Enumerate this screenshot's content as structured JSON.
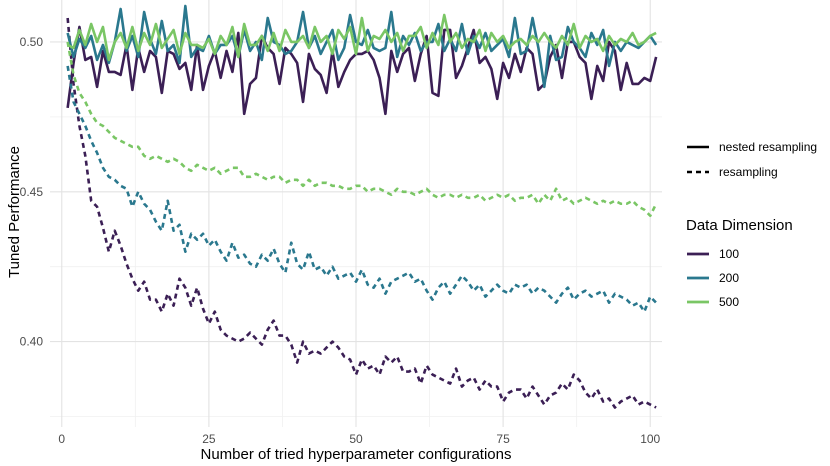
{
  "chart_data": {
    "type": "line",
    "title": "",
    "xlabel": "Number of tried hyperparameter configurations",
    "ylabel": "Tuned Performance",
    "xlim": [
      -2,
      102
    ],
    "ylim": [
      0.3715,
      0.514
    ],
    "x_ticks": [
      {
        "value": 0,
        "label": "0"
      },
      {
        "value": 25,
        "label": "25"
      },
      {
        "value": 50,
        "label": "50"
      },
      {
        "value": 75,
        "label": "75"
      },
      {
        "value": 100,
        "label": "100"
      }
    ],
    "y_ticks": [
      {
        "value": 0.4,
        "label": "0.40"
      },
      {
        "value": 0.45,
        "label": "0.45"
      },
      {
        "value": 0.5,
        "label": "0.50"
      }
    ],
    "grid": true,
    "colors": {
      "100": "#3b1f55",
      "200": "#2a788e",
      "500": "#7ac665"
    },
    "legend_linetype": {
      "items": [
        {
          "label": "nested resampling",
          "dash": "solid"
        },
        {
          "label": "resampling",
          "dash": "dashed"
        }
      ]
    },
    "legend_color": {
      "title": "Data Dimension",
      "items": [
        {
          "label": "100",
          "color": "#3b1f55"
        },
        {
          "label": "200",
          "color": "#2a788e"
        },
        {
          "label": "500",
          "color": "#7ac665"
        }
      ]
    },
    "series": [
      {
        "name": "100 - nested resampling",
        "dimension": "100",
        "dash": "solid",
        "color": "#3b1f55",
        "values": [
          0.478,
          0.493,
          0.505,
          0.494,
          0.495,
          0.485,
          0.497,
          0.49,
          0.49,
          0.489,
          0.499,
          0.484,
          0.498,
          0.49,
          0.497,
          0.495,
          0.483,
          0.497,
          0.496,
          0.491,
          0.493,
          0.484,
          0.499,
          0.484,
          0.492,
          0.497,
          0.488,
          0.497,
          0.49,
          0.503,
          0.476,
          0.486,
          0.488,
          0.502,
          0.498,
          0.496,
          0.486,
          0.498,
          0.496,
          0.493,
          0.48,
          0.496,
          0.491,
          0.489,
          0.483,
          0.497,
          0.485,
          0.49,
          0.494,
          0.496,
          0.496,
          0.497,
          0.494,
          0.488,
          0.476,
          0.497,
          0.49,
          0.496,
          0.498,
          0.487,
          0.496,
          0.502,
          0.483,
          0.482,
          0.504,
          0.504,
          0.488,
          0.492,
          0.498,
          0.504,
          0.493,
          0.495,
          0.491,
          0.481,
          0.493,
          0.488,
          0.496,
          0.49,
          0.498,
          0.496,
          0.484,
          0.486,
          0.495,
          0.499,
          0.488,
          0.5,
          0.5,
          0.495,
          0.493,
          0.481,
          0.492,
          0.487,
          0.5,
          0.497,
          0.484,
          0.493,
          0.486,
          0.486,
          0.488,
          0.487,
          0.495
        ]
      },
      {
        "name": "100 - resampling",
        "dimension": "100",
        "dash": "dashed",
        "color": "#3b1f55",
        "values": [
          0.508,
          0.486,
          0.472,
          0.462,
          0.447,
          0.445,
          0.438,
          0.43,
          0.437,
          0.432,
          0.426,
          0.421,
          0.417,
          0.42,
          0.414,
          0.414,
          0.41,
          0.416,
          0.412,
          0.421,
          0.418,
          0.412,
          0.418,
          0.411,
          0.406,
          0.41,
          0.404,
          0.402,
          0.401,
          0.4,
          0.401,
          0.403,
          0.401,
          0.399,
          0.404,
          0.407,
          0.402,
          0.402,
          0.399,
          0.393,
          0.4,
          0.396,
          0.397,
          0.396,
          0.398,
          0.4,
          0.398,
          0.395,
          0.394,
          0.389,
          0.394,
          0.391,
          0.392,
          0.389,
          0.395,
          0.393,
          0.395,
          0.39,
          0.39,
          0.391,
          0.386,
          0.392,
          0.389,
          0.388,
          0.387,
          0.386,
          0.391,
          0.385,
          0.387,
          0.388,
          0.384,
          0.387,
          0.385,
          0.385,
          0.38,
          0.383,
          0.384,
          0.384,
          0.381,
          0.385,
          0.382,
          0.379,
          0.382,
          0.383,
          0.386,
          0.384,
          0.389,
          0.387,
          0.383,
          0.381,
          0.384,
          0.38,
          0.381,
          0.378,
          0.38,
          0.381,
          0.382,
          0.379,
          0.38,
          0.379,
          0.378
        ]
      },
      {
        "name": "200 - nested resampling",
        "dimension": "200",
        "dash": "solid",
        "color": "#2a788e",
        "values": [
          0.503,
          0.495,
          0.501,
          0.498,
          0.502,
          0.494,
          0.499,
          0.493,
          0.5,
          0.511,
          0.497,
          0.502,
          0.495,
          0.51,
          0.501,
          0.496,
          0.507,
          0.497,
          0.499,
          0.493,
          0.512,
          0.495,
          0.498,
          0.497,
          0.502,
          0.496,
          0.499,
          0.499,
          0.502,
          0.495,
          0.504,
          0.497,
          0.5,
          0.494,
          0.508,
          0.5,
          0.499,
          0.496,
          0.497,
          0.5,
          0.51,
          0.498,
          0.502,
          0.496,
          0.5,
          0.504,
          0.494,
          0.498,
          0.509,
          0.5,
          0.499,
          0.504,
          0.498,
          0.497,
          0.498,
          0.51,
          0.495,
          0.502,
          0.499,
          0.503,
          0.497,
          0.5,
          0.5,
          0.506,
          0.497,
          0.501,
          0.497,
          0.506,
          0.496,
          0.502,
          0.498,
          0.503,
          0.497,
          0.499,
          0.501,
          0.495,
          0.508,
          0.496,
          0.497,
          0.508,
          0.498,
          0.485,
          0.502,
          0.494,
          0.495,
          0.505,
          0.5,
          0.498,
          0.495,
          0.503,
          0.499,
          0.504,
          0.492,
          0.5,
          0.497,
          0.5,
          0.499,
          0.498,
          0.5,
          0.502,
          0.499
        ]
      },
      {
        "name": "200 - resampling",
        "dimension": "200",
        "dash": "dashed",
        "color": "#2a788e",
        "values": [
          0.492,
          0.48,
          0.476,
          0.472,
          0.467,
          0.463,
          0.458,
          0.455,
          0.454,
          0.452,
          0.451,
          0.445,
          0.45,
          0.446,
          0.444,
          0.44,
          0.437,
          0.447,
          0.437,
          0.439,
          0.43,
          0.436,
          0.434,
          0.436,
          0.432,
          0.434,
          0.43,
          0.427,
          0.433,
          0.428,
          0.429,
          0.426,
          0.425,
          0.429,
          0.427,
          0.431,
          0.426,
          0.423,
          0.433,
          0.426,
          0.424,
          0.43,
          0.424,
          0.425,
          0.422,
          0.425,
          0.421,
          0.422,
          0.423,
          0.42,
          0.424,
          0.419,
          0.418,
          0.421,
          0.416,
          0.42,
          0.421,
          0.422,
          0.423,
          0.42,
          0.421,
          0.417,
          0.414,
          0.418,
          0.42,
          0.416,
          0.419,
          0.422,
          0.42,
          0.417,
          0.419,
          0.415,
          0.417,
          0.419,
          0.417,
          0.416,
          0.419,
          0.418,
          0.419,
          0.416,
          0.418,
          0.417,
          0.415,
          0.413,
          0.416,
          0.418,
          0.414,
          0.416,
          0.417,
          0.415,
          0.416,
          0.417,
          0.413,
          0.416,
          0.415,
          0.414,
          0.412,
          0.413,
          0.41,
          0.415,
          0.413
        ]
      },
      {
        "name": "500 - nested resampling",
        "dimension": "500",
        "dash": "solid",
        "color": "#7ac665",
        "values": [
          0.499,
          0.498,
          0.504,
          0.499,
          0.506,
          0.5,
          0.505,
          0.494,
          0.5,
          0.503,
          0.498,
          0.505,
          0.497,
          0.503,
          0.499,
          0.506,
          0.498,
          0.501,
          0.504,
          0.496,
          0.503,
          0.499,
          0.499,
          0.498,
          0.501,
          0.496,
          0.502,
          0.499,
          0.505,
          0.495,
          0.506,
          0.499,
          0.499,
          0.502,
          0.497,
          0.503,
          0.497,
          0.504,
          0.5,
          0.5,
          0.502,
          0.498,
          0.505,
          0.5,
          0.502,
          0.496,
          0.504,
          0.501,
          0.505,
          0.496,
          0.508,
          0.497,
          0.502,
          0.501,
          0.504,
          0.5,
          0.503,
          0.497,
          0.502,
          0.502,
          0.505,
          0.498,
          0.503,
          0.499,
          0.509,
          0.5,
          0.503,
          0.498,
          0.501,
          0.5,
          0.504,
          0.497,
          0.503,
          0.5,
          0.502,
          0.498,
          0.5,
          0.501,
          0.499,
          0.502,
          0.5,
          0.503,
          0.5,
          0.498,
          0.502,
          0.499,
          0.506,
          0.498,
          0.502,
          0.5,
          0.501,
          0.497,
          0.502,
          0.499,
          0.501,
          0.5,
          0.503,
          0.499,
          0.5,
          0.502,
          0.503
        ]
      },
      {
        "name": "500 - resampling",
        "dimension": "500",
        "dash": "dashed",
        "color": "#7ac665",
        "values": [
          0.5,
          0.489,
          0.483,
          0.48,
          0.476,
          0.473,
          0.472,
          0.47,
          0.468,
          0.467,
          0.466,
          0.465,
          0.465,
          0.462,
          0.461,
          0.462,
          0.461,
          0.46,
          0.461,
          0.46,
          0.458,
          0.457,
          0.459,
          0.458,
          0.457,
          0.458,
          0.456,
          0.457,
          0.458,
          0.458,
          0.455,
          0.455,
          0.456,
          0.455,
          0.454,
          0.455,
          0.455,
          0.453,
          0.454,
          0.454,
          0.452,
          0.454,
          0.452,
          0.453,
          0.453,
          0.452,
          0.452,
          0.451,
          0.451,
          0.452,
          0.452,
          0.45,
          0.451,
          0.451,
          0.45,
          0.449,
          0.451,
          0.45,
          0.45,
          0.449,
          0.45,
          0.451,
          0.449,
          0.448,
          0.449,
          0.449,
          0.448,
          0.449,
          0.448,
          0.448,
          0.449,
          0.447,
          0.448,
          0.449,
          0.448,
          0.449,
          0.447,
          0.448,
          0.448,
          0.449,
          0.446,
          0.449,
          0.447,
          0.451,
          0.447,
          0.448,
          0.446,
          0.447,
          0.448,
          0.447,
          0.446,
          0.447,
          0.446,
          0.447,
          0.446,
          0.446,
          0.447,
          0.445,
          0.444,
          0.442,
          0.446
        ]
      }
    ]
  }
}
